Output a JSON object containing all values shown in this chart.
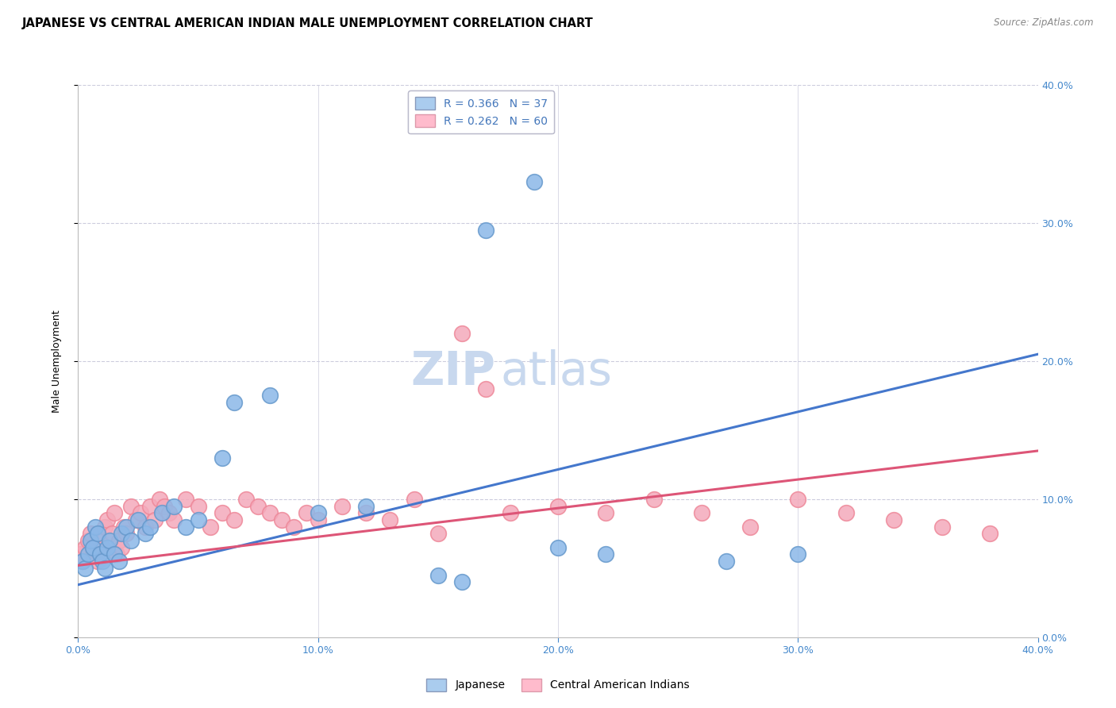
{
  "title": "JAPANESE VS CENTRAL AMERICAN INDIAN MALE UNEMPLOYMENT CORRELATION CHART",
  "source": "Source: ZipAtlas.com",
  "ylabel": "Male Unemployment",
  "xlim": [
    0.0,
    0.4
  ],
  "ylim": [
    0.0,
    0.4
  ],
  "xticks": [
    0.0,
    0.1,
    0.2,
    0.3,
    0.4
  ],
  "yticks": [
    0.0,
    0.1,
    0.2,
    0.3,
    0.4
  ],
  "xticklabels": [
    "0.0%",
    "10.0%",
    "20.0%",
    "30.0%",
    "40.0%"
  ],
  "right_yticklabels": [
    "0.0%",
    "10.0%",
    "20.0%",
    "30.0%",
    "40.0%"
  ],
  "watermark_part1": "ZIP",
  "watermark_part2": "atlas",
  "japanese_color": "#8BB8E8",
  "japanese_edge": "#6699CC",
  "central_color": "#F4AABB",
  "central_edge": "#EE8899",
  "blue_line_color": "#4477CC",
  "pink_line_color": "#DD5577",
  "legend_label_japanese": "Japanese",
  "legend_label_central": "Central American Indians",
  "legend_r_jp": "R = 0.366",
  "legend_n_jp": "N = 37",
  "legend_r_ca": "R = 0.262",
  "legend_n_ca": "N = 60",
  "title_fontsize": 10.5,
  "source_fontsize": 8.5,
  "axis_label_fontsize": 9,
  "tick_fontsize": 9,
  "watermark_fontsize1": 42,
  "watermark_fontsize2": 42,
  "background_color": "#FFFFFF",
  "grid_color": "#CCCCDD",
  "right_ytick_color": "#4488CC",
  "jp_x": [
    0.002,
    0.003,
    0.004,
    0.005,
    0.006,
    0.007,
    0.008,
    0.009,
    0.01,
    0.011,
    0.012,
    0.013,
    0.015,
    0.017,
    0.018,
    0.02,
    0.022,
    0.025,
    0.028,
    0.03,
    0.035,
    0.04,
    0.045,
    0.05,
    0.06,
    0.065,
    0.08,
    0.1,
    0.12,
    0.15,
    0.16,
    0.2,
    0.22,
    0.27,
    0.3,
    0.19,
    0.17
  ],
  "jp_y": [
    0.055,
    0.05,
    0.06,
    0.07,
    0.065,
    0.08,
    0.075,
    0.06,
    0.055,
    0.05,
    0.065,
    0.07,
    0.06,
    0.055,
    0.075,
    0.08,
    0.07,
    0.085,
    0.075,
    0.08,
    0.09,
    0.095,
    0.08,
    0.085,
    0.13,
    0.17,
    0.175,
    0.09,
    0.095,
    0.045,
    0.04,
    0.065,
    0.06,
    0.055,
    0.06,
    0.33,
    0.295
  ],
  "ca_x": [
    0.001,
    0.002,
    0.003,
    0.004,
    0.005,
    0.006,
    0.007,
    0.008,
    0.009,
    0.01,
    0.011,
    0.012,
    0.013,
    0.014,
    0.015,
    0.016,
    0.017,
    0.018,
    0.019,
    0.02,
    0.022,
    0.024,
    0.026,
    0.028,
    0.03,
    0.032,
    0.034,
    0.036,
    0.038,
    0.04,
    0.045,
    0.05,
    0.055,
    0.06,
    0.065,
    0.07,
    0.075,
    0.08,
    0.085,
    0.09,
    0.095,
    0.1,
    0.11,
    0.12,
    0.13,
    0.14,
    0.15,
    0.16,
    0.17,
    0.18,
    0.2,
    0.22,
    0.24,
    0.26,
    0.28,
    0.3,
    0.32,
    0.34,
    0.36,
    0.38
  ],
  "ca_y": [
    0.06,
    0.055,
    0.065,
    0.07,
    0.075,
    0.06,
    0.065,
    0.055,
    0.07,
    0.065,
    0.08,
    0.085,
    0.06,
    0.075,
    0.09,
    0.06,
    0.07,
    0.065,
    0.08,
    0.075,
    0.095,
    0.085,
    0.09,
    0.08,
    0.095,
    0.085,
    0.1,
    0.095,
    0.09,
    0.085,
    0.1,
    0.095,
    0.08,
    0.09,
    0.085,
    0.1,
    0.095,
    0.09,
    0.085,
    0.08,
    0.09,
    0.085,
    0.095,
    0.09,
    0.085,
    0.1,
    0.075,
    0.22,
    0.18,
    0.09,
    0.095,
    0.09,
    0.1,
    0.09,
    0.08,
    0.1,
    0.09,
    0.085,
    0.08,
    0.075
  ]
}
